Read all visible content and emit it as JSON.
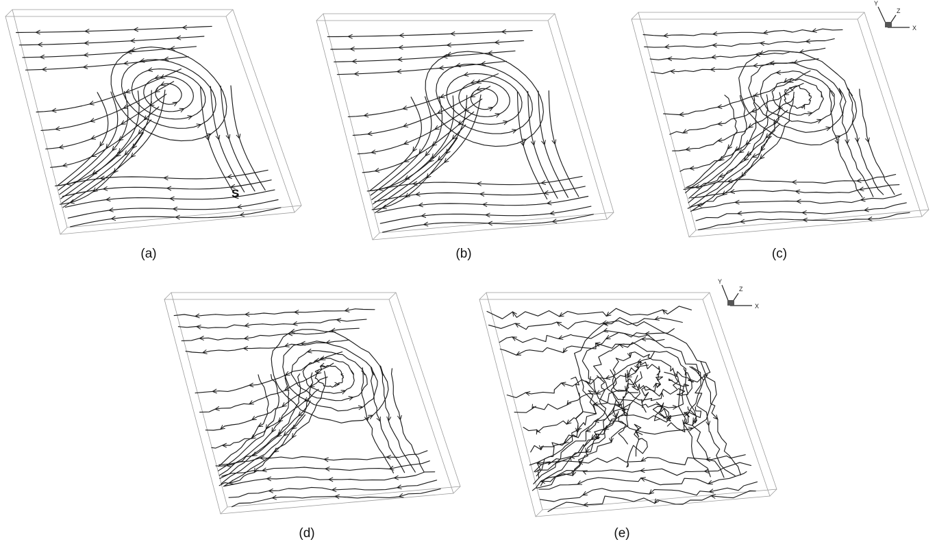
{
  "figure": {
    "panels": [
      {
        "caption": "(a)",
        "singular_point_label": "S",
        "show_axes": false,
        "vortex": "clean"
      },
      {
        "caption": "(b)",
        "show_axes": false,
        "vortex": "clean"
      },
      {
        "caption": "(c)",
        "show_axes": true,
        "vortex": "moderate"
      },
      {
        "caption": "(d)",
        "show_axes": false,
        "vortex": "moderate"
      },
      {
        "caption": "(e)",
        "show_axes": true,
        "vortex": "turbulent"
      }
    ],
    "axes_labels": {
      "x": "X",
      "y": "Y",
      "z": "Z"
    },
    "line_color": "#1a1a1a",
    "box_color": "#9a9a9a"
  }
}
